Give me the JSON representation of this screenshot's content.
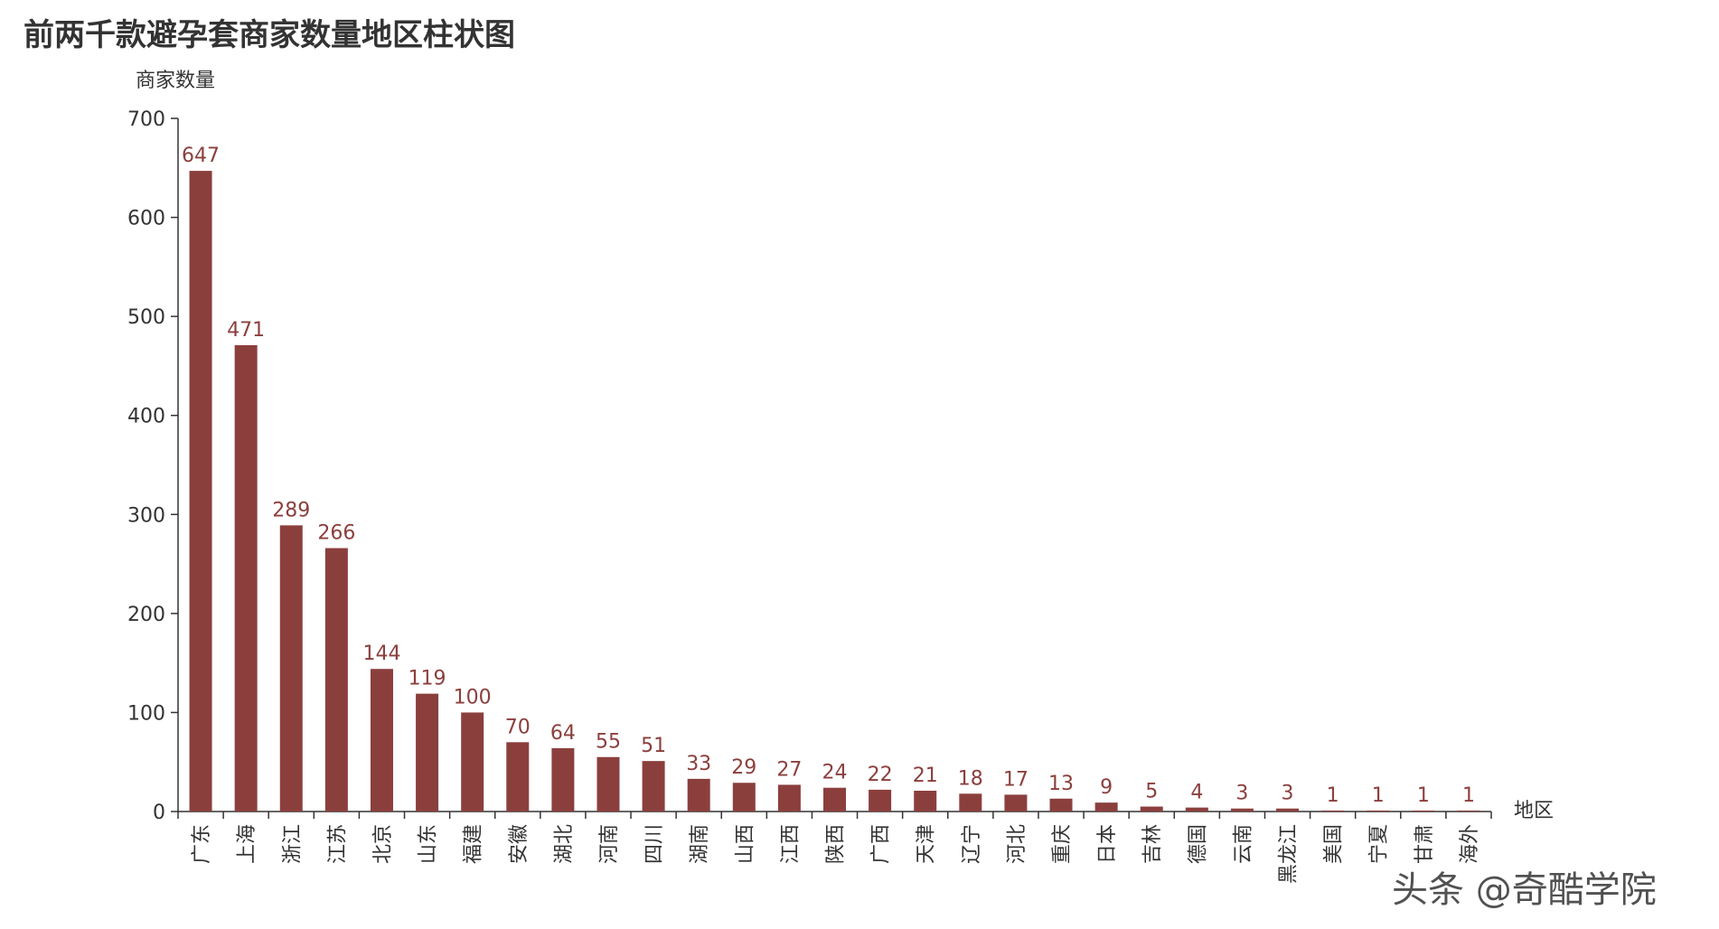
{
  "watermark": "头条 @奇酷学院",
  "chart_data": {
    "type": "bar",
    "title": "前两千款避孕套商家数量地区柱状图",
    "ylabel": "商家数量",
    "xlabel": "地区",
    "ylim": [
      0,
      700
    ],
    "yticks": [
      0,
      100,
      200,
      300,
      400,
      500,
      600,
      700
    ],
    "bar_color": "#8b3f3d",
    "categories": [
      "广东",
      "上海",
      "浙江",
      "江苏",
      "北京",
      "山东",
      "福建",
      "安徽",
      "湖北",
      "河南",
      "四川",
      "湖南",
      "山西",
      "江西",
      "陕西",
      "广西",
      "天津",
      "辽宁",
      "河北",
      "重庆",
      "日本",
      "吉林",
      "德国",
      "云南",
      "黑龙江",
      "美国",
      "宁夏",
      "甘肃",
      "海外"
    ],
    "values": [
      647,
      471,
      289,
      266,
      144,
      119,
      100,
      70,
      64,
      55,
      51,
      33,
      29,
      27,
      24,
      22,
      21,
      18,
      17,
      13,
      9,
      5,
      4,
      3,
      3,
      1,
      1,
      1,
      1
    ]
  }
}
